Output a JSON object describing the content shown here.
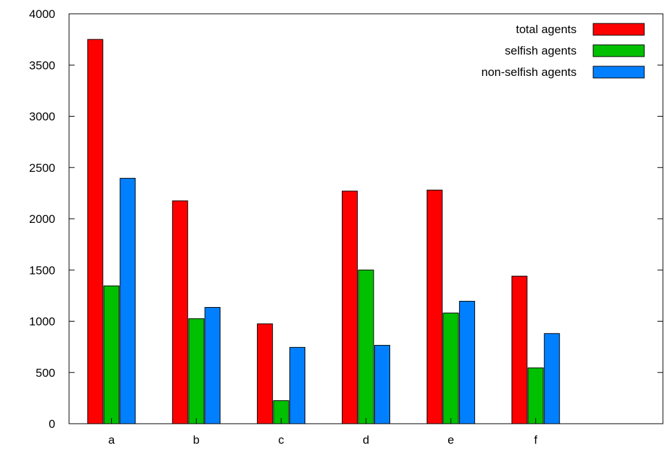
{
  "chart_data": {
    "type": "bar",
    "categories": [
      "a",
      "b",
      "c",
      "d",
      "e",
      "f"
    ],
    "series": [
      {
        "name": "total agents",
        "color": "#ff0000",
        "values": [
          3750,
          2175,
          975,
          2270,
          2280,
          1440
        ]
      },
      {
        "name": "selfish agents",
        "color": "#00c000",
        "values": [
          1345,
          1025,
          225,
          1500,
          1080,
          545
        ]
      },
      {
        "name": "non-selfish agents",
        "color": "#0080ff",
        "values": [
          2395,
          1135,
          745,
          765,
          1195,
          880
        ]
      }
    ],
    "ylim": [
      0,
      4000
    ],
    "yticks": [
      0,
      500,
      1000,
      1500,
      2000,
      2500,
      3000,
      3500,
      4000
    ],
    "xlim_slots": 7,
    "grid": false,
    "legend_position": "top-right"
  }
}
